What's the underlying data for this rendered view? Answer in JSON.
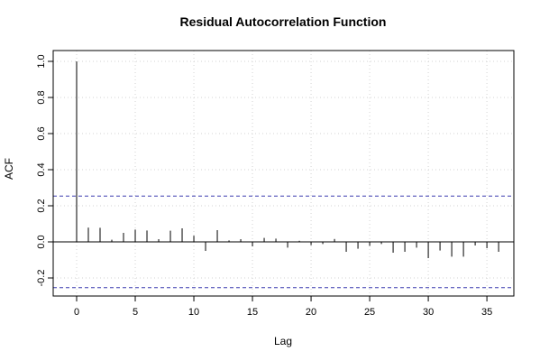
{
  "chart_data": {
    "type": "bar",
    "title": "Residual Autocorrelation Function",
    "xlabel": "Lag",
    "ylabel": "ACF",
    "xlim": [
      -2,
      37.3
    ],
    "ylim": [
      -0.3,
      1.06
    ],
    "x_ticks": [
      0,
      5,
      10,
      15,
      20,
      25,
      30,
      35
    ],
    "x_tick_labels": [
      "0",
      "5",
      "10",
      "15",
      "20",
      "25",
      "30",
      "35"
    ],
    "y_ticks": [
      -0.2,
      0.0,
      0.2,
      0.4,
      0.6,
      0.8,
      1.0
    ],
    "y_tick_labels": [
      "-0.2",
      "0.0",
      "0.2",
      "0.4",
      "0.6",
      "0.8",
      "1.0"
    ],
    "grid": true,
    "confidence_bounds": [
      0.254,
      -0.254
    ],
    "colors": {
      "bars": "#000000",
      "bounds": "#3b3bb0",
      "grid": "#d3d3d3",
      "zero_line": "#000000"
    },
    "lags": [
      0,
      1,
      2,
      3,
      4,
      5,
      6,
      7,
      8,
      9,
      10,
      11,
      12,
      13,
      14,
      15,
      16,
      17,
      18,
      19,
      20,
      21,
      22,
      23,
      24,
      25,
      26,
      27,
      28,
      29,
      30,
      31,
      32,
      33,
      34,
      35,
      36
    ],
    "acf": [
      1.0,
      0.079,
      0.078,
      0.012,
      0.05,
      0.068,
      0.063,
      0.015,
      0.062,
      0.075,
      0.034,
      -0.05,
      0.065,
      0.008,
      0.015,
      -0.025,
      0.022,
      0.018,
      -0.032,
      0.006,
      -0.018,
      -0.012,
      0.016,
      -0.055,
      -0.038,
      -0.022,
      -0.012,
      -0.06,
      -0.055,
      -0.032,
      -0.09,
      -0.048,
      -0.082,
      -0.082,
      -0.02,
      -0.035,
      -0.055
    ]
  }
}
